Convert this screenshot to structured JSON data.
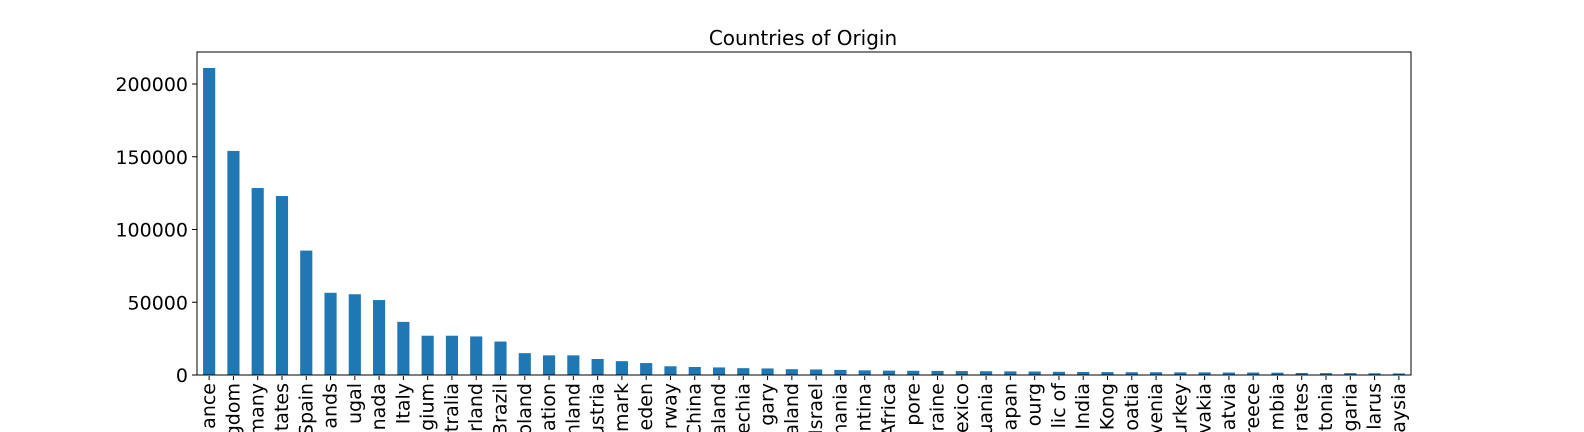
{
  "chart_data": {
    "type": "bar",
    "title": "Countries of Origin",
    "xlabel": "",
    "ylabel": "",
    "ylim": [
      0,
      222000
    ],
    "yticks": [
      0,
      50000,
      100000,
      150000,
      200000
    ],
    "ytick_labels": [
      "0",
      "50000",
      "100000",
      "150000",
      "200000"
    ],
    "grid": false,
    "legend": "none",
    "bar_color": "#1f77b4",
    "categories": [
      "ance",
      "gdom",
      "many",
      "tates",
      "Spain",
      "ands",
      "ugal",
      "nada",
      "Italy",
      "gium",
      "tralia",
      "rland",
      "Brazil",
      "oland",
      "ation",
      "nland",
      "ustria",
      "mark",
      "eden",
      "rway",
      "China",
      "aland",
      "echia",
      "gary",
      "aland",
      "Israel",
      "nania",
      "ntina",
      "Africa",
      "pore",
      "raine",
      "exico",
      "uania",
      "apan",
      "ourg",
      "lic of",
      "India",
      "Kong",
      "oatia",
      "venia",
      "urkey",
      "vakia",
      "atvia",
      "reece",
      "mbia",
      "rates",
      "tonia",
      "garia",
      "larus",
      "aysia"
    ],
    "values": [
      211000,
      154000,
      128500,
      123000,
      85500,
      56500,
      55500,
      51500,
      36500,
      27000,
      27000,
      26500,
      23000,
      15000,
      13500,
      13500,
      11000,
      9500,
      8200,
      6000,
      5500,
      5200,
      4700,
      4500,
      4000,
      3800,
      3500,
      3200,
      3000,
      2900,
      2800,
      2700,
      2600,
      2500,
      2400,
      2200,
      2100,
      2000,
      1900,
      1900,
      1800,
      1800,
      1700,
      1700,
      1600,
      1400,
      1300,
      1300,
      1200,
      1100
    ]
  }
}
